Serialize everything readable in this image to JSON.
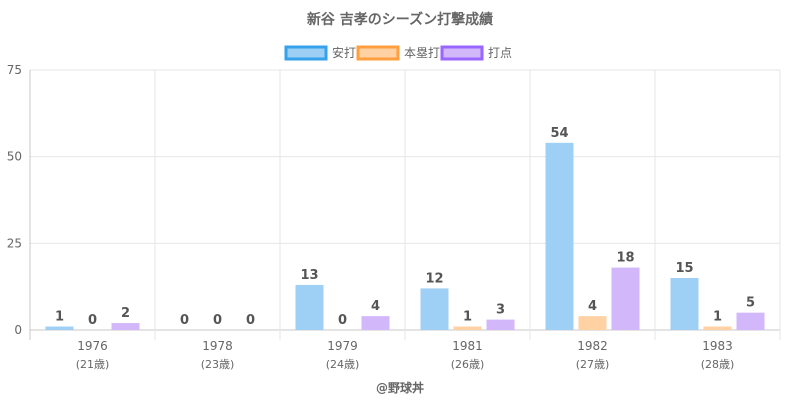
{
  "chart_data": {
    "type": "bar",
    "title": "新谷 吉孝のシーズン打撃成績",
    "categories": [
      "1976",
      "1978",
      "1979",
      "1981",
      "1982",
      "1983"
    ],
    "category_sublabels": [
      "(21歳)",
      "(23歳)",
      "(24歳)",
      "(26歳)",
      "(27歳)",
      "(28歳)"
    ],
    "series": [
      {
        "name": "安打",
        "values": [
          1,
          0,
          13,
          12,
          54,
          15
        ],
        "fill": "#9ecff5",
        "stroke": "#36a2eb"
      },
      {
        "name": "本塁打",
        "values": [
          0,
          0,
          0,
          1,
          4,
          1
        ],
        "fill": "#ffd1a3",
        "stroke": "#ff9f40"
      },
      {
        "name": "打点",
        "values": [
          2,
          0,
          4,
          3,
          18,
          5
        ],
        "fill": "#d2b7fb",
        "stroke": "#9966ff"
      }
    ],
    "ylim": [
      0,
      75
    ],
    "yticks": [
      0,
      25,
      50,
      75
    ],
    "legend_position": "top",
    "grid": true
  },
  "credit": "@野球丼"
}
